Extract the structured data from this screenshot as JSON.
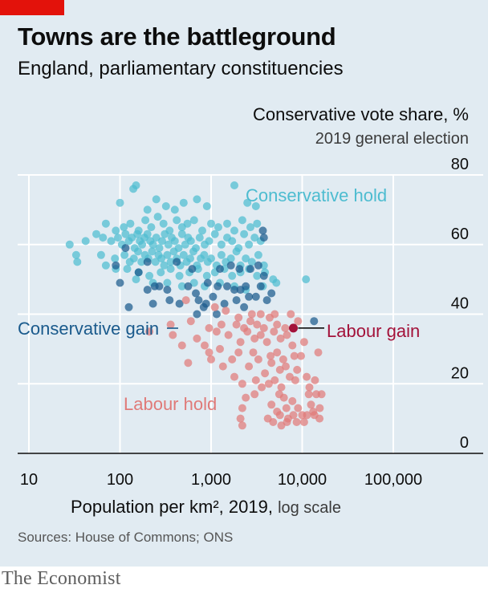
{
  "header": {
    "title": "Towns are the battleground",
    "subtitle": "England, parliamentary constituencies"
  },
  "footer": {
    "source": "Sources: House of Commons; ONS",
    "brand": "The Economist"
  },
  "colors": {
    "conservative_hold": "#4dbcd0",
    "conservative_gain": "#1a5a8c",
    "labour_hold": "#e07a78",
    "labour_gain": "#a3123a",
    "background": "#e1ebf2",
    "brand_red": "#e3120b"
  },
  "chart_data": {
    "type": "scatter",
    "title": "Towns are the battleground",
    "subtitle": "England, parliamentary constituencies",
    "ylabel": "Conservative vote share, %",
    "ylabel_note": "2019 general election",
    "xlabel": "Population per km², 2019,",
    "xlabel_note": "log scale",
    "x_scale": "log",
    "xlim": [
      10,
      100000
    ],
    "ylim": [
      0,
      80
    ],
    "x_ticks": [
      10,
      100,
      1000,
      10000,
      100000
    ],
    "x_tick_labels": [
      "10",
      "100",
      "1,000",
      "10,000",
      "100,000"
    ],
    "y_ticks": [
      0,
      20,
      40,
      60,
      80
    ],
    "y_tick_labels": [
      "0",
      "20",
      "40",
      "60",
      "80"
    ],
    "grid": true,
    "series": [
      {
        "name": "Conservative hold",
        "color": "#4dbcd0",
        "points": [
          [
            100,
            72
          ],
          [
            140,
            76
          ],
          [
            150,
            77
          ],
          [
            200,
            70
          ],
          [
            250,
            73
          ],
          [
            320,
            71
          ],
          [
            400,
            70
          ],
          [
            500,
            72
          ],
          [
            700,
            73
          ],
          [
            900,
            71
          ],
          [
            1800,
            77
          ],
          [
            2500,
            72
          ],
          [
            3100,
            71
          ],
          [
            70,
            66
          ],
          [
            90,
            64
          ],
          [
            110,
            65
          ],
          [
            130,
            66
          ],
          [
            160,
            64
          ],
          [
            190,
            67
          ],
          [
            220,
            65
          ],
          [
            260,
            68
          ],
          [
            300,
            66
          ],
          [
            350,
            64
          ],
          [
            420,
            67
          ],
          [
            480,
            65
          ],
          [
            550,
            66
          ],
          [
            650,
            67
          ],
          [
            800,
            64
          ],
          [
            1000,
            66
          ],
          [
            1200,
            65
          ],
          [
            1500,
            66
          ],
          [
            1800,
            64
          ],
          [
            2200,
            67
          ],
          [
            2700,
            65
          ],
          [
            3200,
            66
          ],
          [
            28,
            60
          ],
          [
            42,
            61
          ],
          [
            55,
            63
          ],
          [
            65,
            62
          ],
          [
            80,
            61
          ],
          [
            95,
            62
          ],
          [
            105,
            60
          ],
          [
            115,
            63
          ],
          [
            125,
            61
          ],
          [
            135,
            62
          ],
          [
            145,
            59
          ],
          [
            155,
            63
          ],
          [
            165,
            61
          ],
          [
            175,
            60
          ],
          [
            185,
            62
          ],
          [
            200,
            63
          ],
          [
            215,
            61
          ],
          [
            230,
            60
          ],
          [
            250,
            62
          ],
          [
            270,
            59
          ],
          [
            290,
            61
          ],
          [
            310,
            63
          ],
          [
            340,
            60
          ],
          [
            370,
            62
          ],
          [
            400,
            61
          ],
          [
            440,
            59
          ],
          [
            480,
            63
          ],
          [
            520,
            60
          ],
          [
            560,
            62
          ],
          [
            600,
            61
          ],
          [
            680,
            59
          ],
          [
            750,
            62
          ],
          [
            850,
            60
          ],
          [
            950,
            61
          ],
          [
            1100,
            63
          ],
          [
            1300,
            60
          ],
          [
            1500,
            62
          ],
          [
            1700,
            61
          ],
          [
            2000,
            59
          ],
          [
            2300,
            63
          ],
          [
            2600,
            60
          ],
          [
            3000,
            62
          ],
          [
            3500,
            61
          ],
          [
            33,
            57
          ],
          [
            62,
            57
          ],
          [
            88,
            56
          ],
          [
            112,
            57
          ],
          [
            128,
            55
          ],
          [
            142,
            56
          ],
          [
            158,
            58
          ],
          [
            172,
            55
          ],
          [
            188,
            57
          ],
          [
            205,
            56
          ],
          [
            225,
            58
          ],
          [
            245,
            55
          ],
          [
            265,
            57
          ],
          [
            285,
            56
          ],
          [
            305,
            54
          ],
          [
            330,
            57
          ],
          [
            360,
            55
          ],
          [
            390,
            58
          ],
          [
            420,
            56
          ],
          [
            460,
            54
          ],
          [
            500,
            57
          ],
          [
            540,
            55
          ],
          [
            590,
            56
          ],
          [
            640,
            58
          ],
          [
            700,
            54
          ],
          [
            770,
            56
          ],
          [
            840,
            57
          ],
          [
            920,
            55
          ],
          [
            1000,
            56
          ],
          [
            1150,
            54
          ],
          [
            1300,
            57
          ],
          [
            1450,
            55
          ],
          [
            1650,
            56
          ],
          [
            1900,
            58
          ],
          [
            2100,
            54
          ],
          [
            2400,
            56
          ],
          [
            2800,
            55
          ],
          [
            3300,
            57
          ],
          [
            3800,
            54
          ],
          [
            34,
            55
          ],
          [
            70,
            54
          ],
          [
            90,
            53
          ],
          [
            120,
            53
          ],
          [
            160,
            52
          ],
          [
            210,
            51
          ],
          [
            280,
            52
          ],
          [
            360,
            53
          ],
          [
            450,
            51
          ],
          [
            580,
            52
          ],
          [
            720,
            53
          ],
          [
            900,
            51
          ],
          [
            1100,
            52
          ],
          [
            1400,
            53
          ],
          [
            1700,
            51
          ],
          [
            2100,
            52
          ],
          [
            2600,
            53
          ],
          [
            3200,
            51
          ],
          [
            3900,
            52
          ],
          [
            4800,
            50
          ],
          [
            5200,
            49
          ],
          [
            11000,
            50
          ],
          [
            150,
            50
          ],
          [
            230,
            49
          ],
          [
            330,
            49
          ],
          [
            480,
            48
          ],
          [
            650,
            49
          ],
          [
            850,
            48
          ],
          [
            1250,
            49
          ],
          [
            1800,
            48
          ],
          [
            2400,
            47
          ],
          [
            3700,
            48
          ]
        ]
      },
      {
        "name": "Conservative gain",
        "color": "#1a5a8c",
        "points": [
          [
            3700,
            64
          ],
          [
            3800,
            62
          ],
          [
            90,
            54
          ],
          [
            115,
            59
          ],
          [
            160,
            52
          ],
          [
            200,
            55
          ],
          [
            420,
            55
          ],
          [
            620,
            53
          ],
          [
            1250,
            53
          ],
          [
            1650,
            54
          ],
          [
            2050,
            53
          ],
          [
            2700,
            53
          ],
          [
            3300,
            54
          ],
          [
            3800,
            51
          ],
          [
            100,
            49
          ],
          [
            200,
            47
          ],
          [
            240,
            48
          ],
          [
            270,
            48
          ],
          [
            330,
            47
          ],
          [
            560,
            48
          ],
          [
            680,
            46
          ],
          [
            920,
            49
          ],
          [
            1180,
            48
          ],
          [
            1500,
            48
          ],
          [
            1800,
            47
          ],
          [
            2100,
            47
          ],
          [
            2400,
            48
          ],
          [
            3500,
            48
          ],
          [
            4600,
            46
          ],
          [
            125,
            42
          ],
          [
            230,
            43
          ],
          [
            350,
            44
          ],
          [
            450,
            43
          ],
          [
            730,
            44
          ],
          [
            880,
            43
          ],
          [
            1050,
            45
          ],
          [
            1400,
            43
          ],
          [
            1900,
            44
          ],
          [
            2600,
            45
          ],
          [
            3100,
            45
          ],
          [
            4100,
            44
          ],
          [
            700,
            40
          ],
          [
            830,
            42
          ],
          [
            1150,
            40
          ],
          [
            2300,
            42
          ],
          [
            13500,
            38
          ]
        ]
      },
      {
        "name": "Labour hold",
        "color": "#e07a78",
        "points": [
          [
            530,
            44
          ],
          [
            1100,
            42
          ],
          [
            1450,
            41
          ],
          [
            2000,
            39
          ],
          [
            2800,
            40
          ],
          [
            3500,
            40
          ],
          [
            5000,
            40
          ],
          [
            7500,
            40
          ],
          [
            360,
            37
          ],
          [
            600,
            38
          ],
          [
            950,
            36
          ],
          [
            1300,
            37
          ],
          [
            1900,
            37
          ],
          [
            2300,
            36
          ],
          [
            2700,
            38
          ],
          [
            3200,
            37
          ],
          [
            3800,
            36
          ],
          [
            4400,
            39
          ],
          [
            5300,
            37
          ],
          [
            6500,
            36
          ],
          [
            9000,
            38
          ],
          [
            210,
            35
          ],
          [
            380,
            34
          ],
          [
            700,
            33
          ],
          [
            850,
            31
          ],
          [
            1150,
            35
          ],
          [
            1550,
            34
          ],
          [
            2100,
            32
          ],
          [
            2500,
            35
          ],
          [
            3000,
            33
          ],
          [
            3500,
            34
          ],
          [
            4100,
            32
          ],
          [
            4900,
            35
          ],
          [
            5800,
            33
          ],
          [
            6800,
            34
          ],
          [
            7800,
            31
          ],
          [
            10500,
            32
          ],
          [
            480,
            31
          ],
          [
            950,
            29
          ],
          [
            1250,
            30
          ],
          [
            1700,
            27
          ],
          [
            2000,
            29
          ],
          [
            2900,
            29
          ],
          [
            3300,
            27
          ],
          [
            4500,
            28
          ],
          [
            5300,
            29
          ],
          [
            6200,
            27
          ],
          [
            8200,
            28
          ],
          [
            9700,
            28
          ],
          [
            15000,
            29
          ],
          [
            560,
            26
          ],
          [
            1000,
            27
          ],
          [
            1350,
            25
          ],
          [
            2600,
            25
          ],
          [
            3900,
            23
          ],
          [
            4600,
            26
          ],
          [
            5700,
            24
          ],
          [
            6600,
            25
          ],
          [
            8800,
            24
          ],
          [
            11200,
            22
          ],
          [
            1800,
            22
          ],
          [
            2200,
            20
          ],
          [
            3100,
            21
          ],
          [
            3600,
            19
          ],
          [
            4300,
            20
          ],
          [
            5000,
            21
          ],
          [
            5900,
            19
          ],
          [
            7300,
            22
          ],
          [
            8400,
            21
          ],
          [
            12000,
            19
          ],
          [
            13800,
            21
          ],
          [
            2400,
            16
          ],
          [
            3000,
            17
          ],
          [
            5600,
            17
          ],
          [
            6300,
            16
          ],
          [
            7800,
            15
          ],
          [
            11800,
            17
          ],
          [
            14300,
            17
          ],
          [
            16300,
            17
          ],
          [
            2200,
            13
          ],
          [
            4600,
            14
          ],
          [
            5300,
            12
          ],
          [
            6700,
            13
          ],
          [
            9000,
            13
          ],
          [
            12500,
            14
          ],
          [
            13200,
            12
          ],
          [
            15600,
            13
          ],
          [
            2100,
            10
          ],
          [
            4200,
            10
          ],
          [
            5700,
            11
          ],
          [
            7000,
            10
          ],
          [
            8000,
            11
          ],
          [
            10000,
            11
          ],
          [
            11300,
            11
          ],
          [
            13600,
            11
          ],
          [
            15500,
            10
          ],
          [
            2200,
            8
          ],
          [
            4800,
            9
          ],
          [
            5900,
            8
          ],
          [
            6800,
            9
          ],
          [
            8700,
            9
          ],
          [
            10500,
            9
          ]
        ]
      },
      {
        "name": "Labour gain",
        "color": "#a3123a",
        "points": [
          [
            8000,
            36
          ]
        ]
      }
    ],
    "annotations": [
      {
        "text": "Conservative hold",
        "series": "Conservative hold"
      },
      {
        "text": "Conservative gain",
        "series": "Conservative gain"
      },
      {
        "text": "Labour gain",
        "series": "Labour gain"
      },
      {
        "text": "Labour hold",
        "series": "Labour hold"
      }
    ]
  }
}
